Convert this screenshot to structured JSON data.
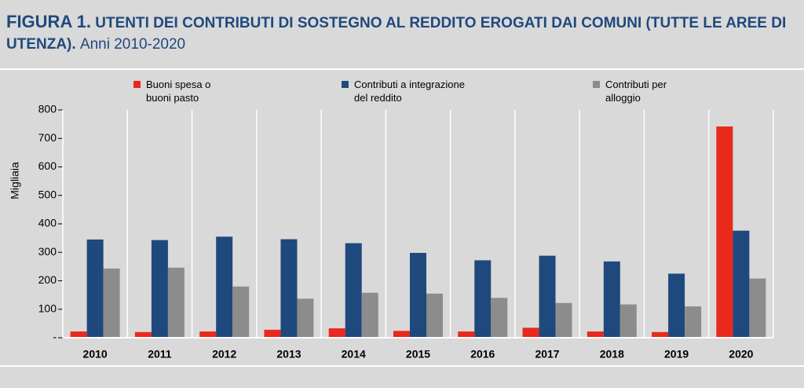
{
  "chart_data": {
    "type": "bar",
    "title_prefix": "FIGURA 1.",
    "title": "UTENTI DEI CONTRIBUTI DI SOSTEGNO AL REDDITO EROGATI DAI COMUNI (TUTTE LE AREE DI UTENZA).",
    "subtitle": "Anni 2010-2020",
    "ylabel": "Migliaia",
    "categories": [
      "2010",
      "2011",
      "2012",
      "2013",
      "2014",
      "2015",
      "2016",
      "2017",
      "2018",
      "2019",
      "2020"
    ],
    "series": [
      {
        "name": "Buoni spesa o\nbuoni pasto",
        "color": "#e8291c",
        "values": [
          22,
          20,
          22,
          28,
          33,
          24,
          22,
          35,
          22,
          20,
          742
        ]
      },
      {
        "name": "Contributi a integrazione\ndel reddito",
        "color": "#1f497d",
        "values": [
          345,
          343,
          355,
          346,
          332,
          298,
          272,
          288,
          268,
          225,
          376
        ]
      },
      {
        "name": "Contributi per\nalloggio",
        "color": "#8c8c8c",
        "values": [
          243,
          246,
          180,
          137,
          158,
          155,
          140,
          122,
          117,
          110,
          208
        ]
      }
    ],
    "ylim": [
      0,
      800
    ],
    "yticks": [
      {
        "value": 0,
        "label": "-"
      },
      100,
      200,
      300,
      400,
      500,
      600,
      700,
      800
    ]
  }
}
